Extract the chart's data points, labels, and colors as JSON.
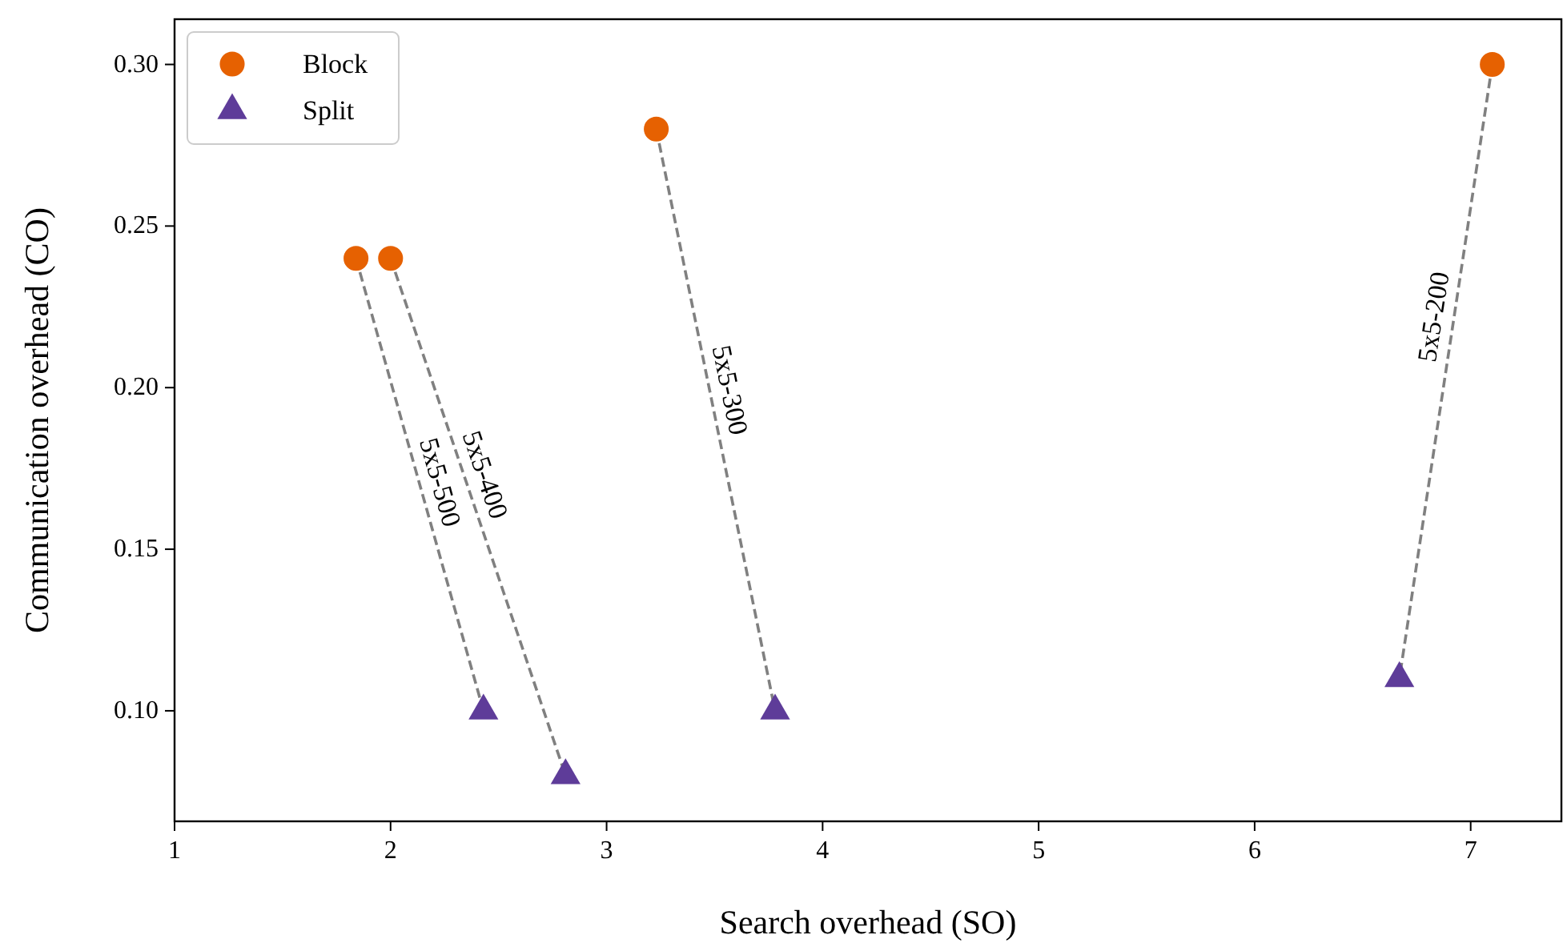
{
  "chart_data": {
    "type": "scatter",
    "xlabel": "Search overhead (SO)",
    "ylabel": "Communication overhead (CO)",
    "xlim": [
      1,
      7.42
    ],
    "ylim": [
      0.0658,
      0.314
    ],
    "xticks": [
      1,
      2,
      3,
      4,
      5,
      6,
      7
    ],
    "yticks": [
      {
        "value": 0.1,
        "label": "0.10"
      },
      {
        "value": 0.15,
        "label": "0.15"
      },
      {
        "value": 0.2,
        "label": "0.20"
      },
      {
        "value": 0.25,
        "label": "0.25"
      },
      {
        "value": 0.3,
        "label": "0.30"
      }
    ],
    "grid": false,
    "legend": "top left",
    "series": [
      {
        "type": "line",
        "color": "#808080",
        "line_style": "dashed",
        "marker": "none",
        "x": [
          1.84,
          2.43
        ],
        "values": [
          0.24,
          0.1
        ]
      },
      {
        "type": "line",
        "color": "#808080",
        "line_style": "dashed",
        "marker": "none",
        "x": [
          2.0,
          2.81
        ],
        "values": [
          0.24,
          0.08
        ]
      },
      {
        "type": "line",
        "color": "#808080",
        "line_style": "dashed",
        "marker": "none",
        "x": [
          3.23,
          3.78
        ],
        "values": [
          0.28,
          0.1
        ]
      },
      {
        "type": "line",
        "color": "#808080",
        "line_style": "dashed",
        "marker": "none",
        "x": [
          7.1,
          6.67
        ],
        "values": [
          0.3,
          0.11
        ]
      },
      {
        "name": "Block",
        "color": "#e66101",
        "marker": "circle",
        "x": [
          1.84,
          2.0,
          3.23,
          7.1
        ],
        "values": [
          0.24,
          0.24,
          0.28,
          0.3
        ]
      },
      {
        "name": "Split",
        "color": "#5e3c99",
        "marker": "triangle",
        "x": [
          2.43,
          2.81,
          3.78,
          6.67
        ],
        "values": [
          0.1,
          0.08,
          0.1,
          0.11
        ]
      }
    ],
    "annotations": [
      {
        "text": "5x5-500",
        "x": 2.14,
        "y": 0.169
      },
      {
        "text": "5x5-400",
        "x": 2.35,
        "y": 0.171
      },
      {
        "text": "5x5-300",
        "x": 3.48,
        "y": 0.198
      },
      {
        "text": "5x5-200",
        "x": 6.92,
        "y": 0.221
      }
    ]
  }
}
